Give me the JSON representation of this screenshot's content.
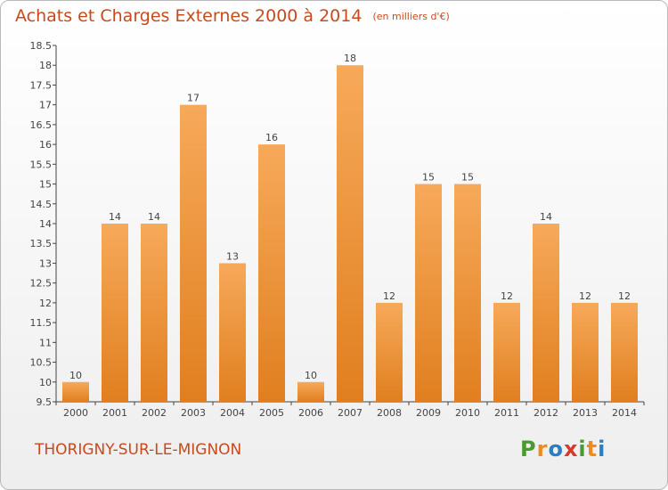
{
  "header": {
    "title": "Achats et Charges Externes 2000 à 2014",
    "subtitle": "(en milliers d'€)"
  },
  "footer": {
    "commune": "THORIGNY-SUR-LE-MIGNON",
    "logo": [
      "P",
      "r",
      "o",
      "x",
      "i",
      "t",
      "i"
    ]
  },
  "colors": {
    "title": "#c84a1c",
    "bar_top": "#f7a95a",
    "bar_bottom": "#e07f1f",
    "logo": [
      "#4a9a2f",
      "#f08a1c",
      "#2a7fc4",
      "#d83a2a",
      "#4a9a2f",
      "#f08a1c",
      "#2a7fc4"
    ]
  },
  "chart_data": {
    "type": "bar",
    "title": "Achats et Charges Externes 2000 à 2014",
    "subtitle": "(en milliers d'€)",
    "categories": [
      "2000",
      "2001",
      "2002",
      "2003",
      "2004",
      "2005",
      "2006",
      "2007",
      "2008",
      "2009",
      "2010",
      "2011",
      "2012",
      "2013",
      "2014"
    ],
    "values": [
      10,
      14,
      14,
      17,
      13,
      16,
      10,
      18,
      12,
      15,
      15,
      12,
      14,
      12,
      12
    ],
    "ylim": [
      9.5,
      18.5
    ],
    "yticks": [
      "9.5",
      "10",
      "10.5",
      "11",
      "11.5",
      "12",
      "12.5",
      "13",
      "13.5",
      "14",
      "14.5",
      "15",
      "15.5",
      "16",
      "16.5",
      "17",
      "17.5",
      "18",
      "18.5"
    ],
    "grid": false,
    "legend": "none"
  }
}
